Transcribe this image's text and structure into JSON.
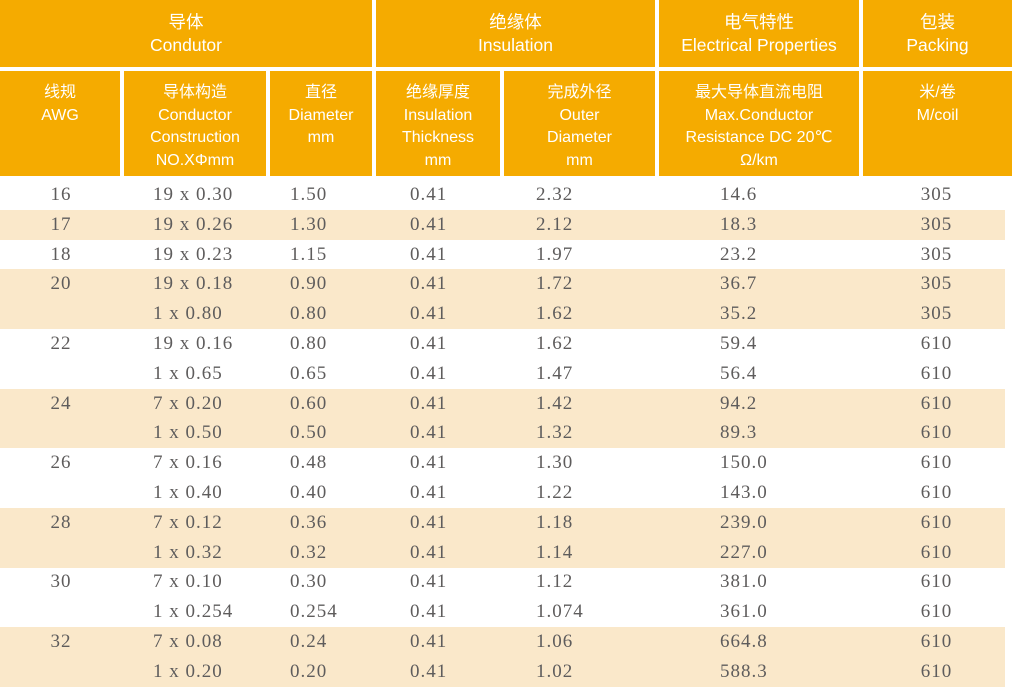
{
  "colors": {
    "header_bg": "#F5AB00",
    "stripe_bg": "#FAE8CA",
    "body_text": "#5E5C5C",
    "header_text": "#FFFFFF"
  },
  "table": {
    "groups": [
      {
        "zh": "导体",
        "en": "Condutor"
      },
      {
        "zh": "绝缘体",
        "en": "Insulation"
      },
      {
        "zh": "电气特性",
        "en": "Electrical Properties"
      },
      {
        "zh": "包装",
        "en": "Packing"
      }
    ],
    "columns": [
      {
        "key": "awg",
        "lines": [
          "线规",
          "AWG"
        ]
      },
      {
        "key": "construction",
        "lines": [
          "导体构造",
          "Conductor",
          "Construction",
          "NO.XΦmm"
        ]
      },
      {
        "key": "diameter",
        "lines": [
          "直径",
          "Diameter",
          "mm"
        ]
      },
      {
        "key": "insulation_thickness",
        "lines": [
          "绝缘厚度",
          "Insulation",
          "Thickness",
          "mm"
        ]
      },
      {
        "key": "outer_diameter",
        "lines": [
          "完成外径",
          "Outer",
          "Diameter",
          "mm"
        ]
      },
      {
        "key": "resistance",
        "lines": [
          "最大导体直流电阻",
          "Max.Conductor",
          "Resistance DC 20℃",
          "Ω/km"
        ]
      },
      {
        "key": "m_per_coil",
        "lines": [
          "米/卷",
          "M/coil"
        ]
      }
    ],
    "rows": [
      {
        "awg": "16",
        "construction": "19 x 0.30",
        "diameter": "1.50",
        "insulation_thickness": "0.41",
        "outer_diameter": "2.32",
        "resistance": "14.6",
        "m_per_coil": "305",
        "shaded": false
      },
      {
        "awg": "17",
        "construction": "19 x 0.26",
        "diameter": "1.30",
        "insulation_thickness": "0.41",
        "outer_diameter": "2.12",
        "resistance": "18.3",
        "m_per_coil": "305",
        "shaded": true
      },
      {
        "awg": "18",
        "construction": "19 x 0.23",
        "diameter": "1.15",
        "insulation_thickness": "0.41",
        "outer_diameter": "1.97",
        "resistance": "23.2",
        "m_per_coil": "305",
        "shaded": false
      },
      {
        "awg": "20",
        "construction": "19 x 0.18",
        "diameter": "0.90",
        "insulation_thickness": "0.41",
        "outer_diameter": "1.72",
        "resistance": "36.7",
        "m_per_coil": "305",
        "shaded": true
      },
      {
        "awg": "",
        "construction": "1 x 0.80",
        "diameter": "0.80",
        "insulation_thickness": "0.41",
        "outer_diameter": "1.62",
        "resistance": "35.2",
        "m_per_coil": "305",
        "shaded": true
      },
      {
        "awg": "22",
        "construction": "19 x 0.16",
        "diameter": "0.80",
        "insulation_thickness": "0.41",
        "outer_diameter": "1.62",
        "resistance": "59.4",
        "m_per_coil": "610",
        "shaded": false
      },
      {
        "awg": "",
        "construction": "1 x 0.65",
        "diameter": "0.65",
        "insulation_thickness": "0.41",
        "outer_diameter": "1.47",
        "resistance": "56.4",
        "m_per_coil": "610",
        "shaded": false
      },
      {
        "awg": "24",
        "construction": "7 x 0.20",
        "diameter": "0.60",
        "insulation_thickness": "0.41",
        "outer_diameter": "1.42",
        "resistance": "94.2",
        "m_per_coil": "610",
        "shaded": true
      },
      {
        "awg": "",
        "construction": "1 x 0.50",
        "diameter": "0.50",
        "insulation_thickness": "0.41",
        "outer_diameter": "1.32",
        "resistance": "89.3",
        "m_per_coil": "610",
        "shaded": true
      },
      {
        "awg": "26",
        "construction": "7 x 0.16",
        "diameter": "0.48",
        "insulation_thickness": "0.41",
        "outer_diameter": "1.30",
        "resistance": "150.0",
        "m_per_coil": "610",
        "shaded": false
      },
      {
        "awg": "",
        "construction": "1 x 0.40",
        "diameter": "0.40",
        "insulation_thickness": "0.41",
        "outer_diameter": "1.22",
        "resistance": "143.0",
        "m_per_coil": "610",
        "shaded": false
      },
      {
        "awg": "28",
        "construction": "7 x 0.12",
        "diameter": "0.36",
        "insulation_thickness": "0.41",
        "outer_diameter": "1.18",
        "resistance": "239.0",
        "m_per_coil": "610",
        "shaded": true
      },
      {
        "awg": "",
        "construction": "1 x 0.32",
        "diameter": "0.32",
        "insulation_thickness": "0.41",
        "outer_diameter": "1.14",
        "resistance": "227.0",
        "m_per_coil": "610",
        "shaded": true
      },
      {
        "awg": "30",
        "construction": "7 x 0.10",
        "diameter": "0.30",
        "insulation_thickness": "0.41",
        "outer_diameter": "1.12",
        "resistance": "381.0",
        "m_per_coil": "610",
        "shaded": false
      },
      {
        "awg": "",
        "construction": "1 x 0.254",
        "diameter": "0.254",
        "insulation_thickness": "0.41",
        "outer_diameter": "1.074",
        "resistance": "361.0",
        "m_per_coil": "610",
        "shaded": false
      },
      {
        "awg": "32",
        "construction": "7 x 0.08",
        "diameter": "0.24",
        "insulation_thickness": "0.41",
        "outer_diameter": "1.06",
        "resistance": "664.8",
        "m_per_coil": "610",
        "shaded": true
      },
      {
        "awg": "",
        "construction": "1 x 0.20",
        "diameter": "0.20",
        "insulation_thickness": "0.41",
        "outer_diameter": "1.02",
        "resistance": "588.3",
        "m_per_coil": "610",
        "shaded": true
      }
    ]
  }
}
